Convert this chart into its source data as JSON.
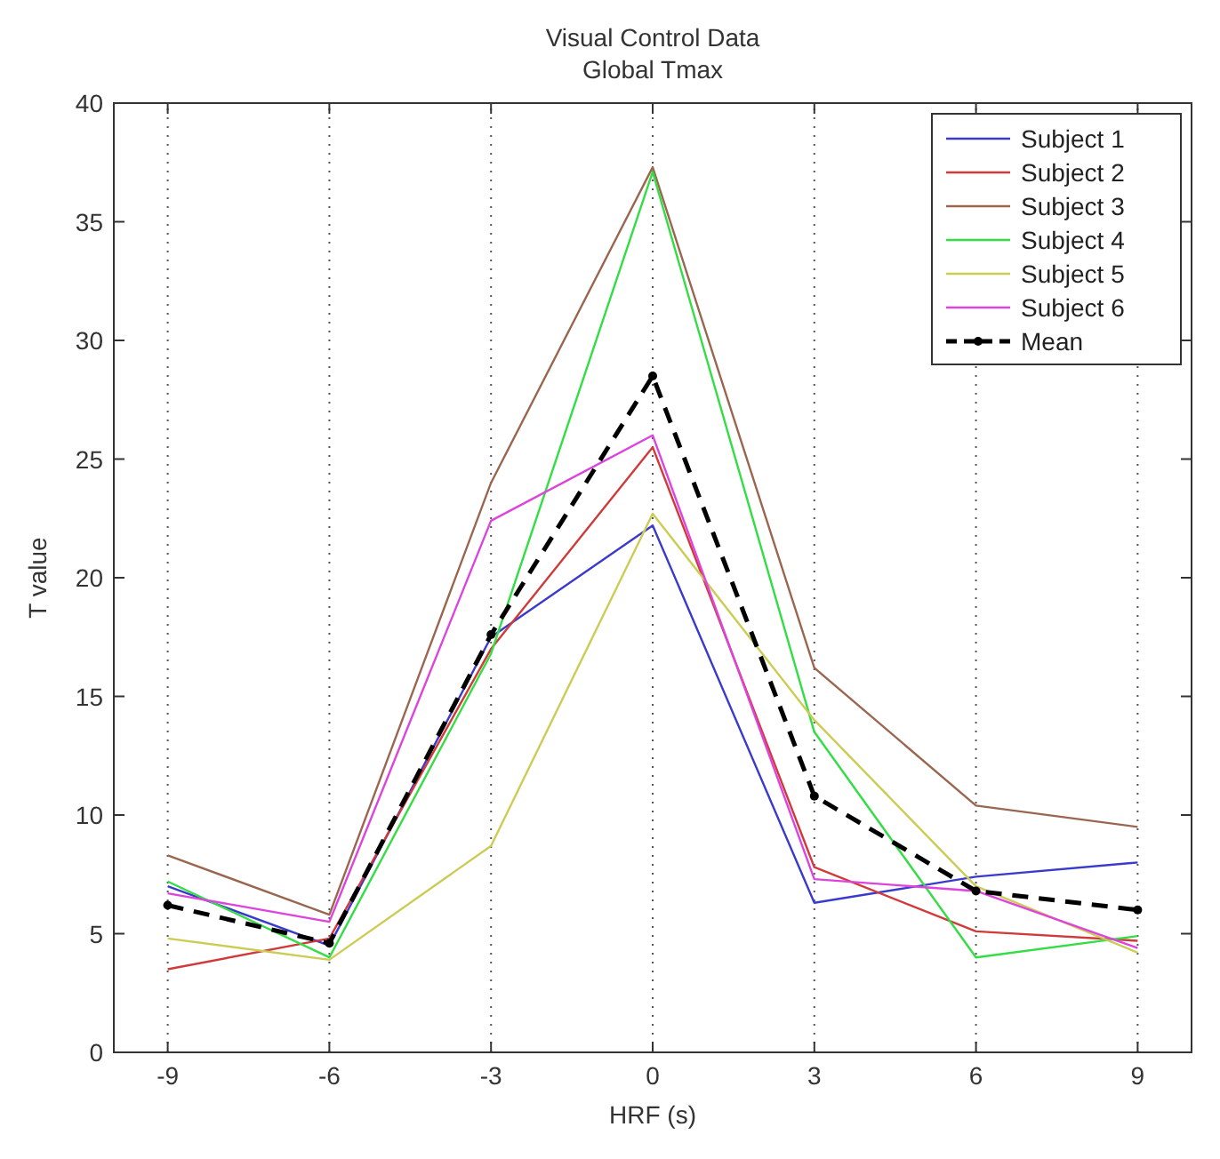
{
  "chart_data": {
    "type": "line",
    "title": "Visual Control Data",
    "subtitle": "Global Tmax",
    "xlabel": "HRF (s)",
    "ylabel": "T value",
    "x": [
      -9,
      -6,
      -3,
      0,
      3,
      6,
      9
    ],
    "xlim": [
      -10,
      10
    ],
    "xticks": [
      -9,
      -6,
      -3,
      0,
      3,
      6,
      9
    ],
    "ylim": [
      0,
      40
    ],
    "yticks": [
      0,
      5,
      10,
      15,
      20,
      25,
      30,
      35,
      40
    ],
    "grid": "x",
    "legend": "top right",
    "series": [
      {
        "name": "Subject 1",
        "color": "#3a3acc",
        "values": [
          7.0,
          4.5,
          17.5,
          22.2,
          6.3,
          7.4,
          8.0
        ]
      },
      {
        "name": "Subject 2",
        "color": "#d03a3a",
        "values": [
          3.5,
          4.8,
          17.0,
          25.5,
          7.8,
          5.1,
          4.7
        ]
      },
      {
        "name": "Subject 3",
        "color": "#9a6650",
        "values": [
          8.3,
          5.8,
          24.0,
          37.3,
          16.2,
          10.4,
          9.5
        ]
      },
      {
        "name": "Subject 4",
        "color": "#33dd44",
        "values": [
          7.2,
          4.0,
          16.8,
          37.1,
          13.5,
          4.0,
          4.9
        ]
      },
      {
        "name": "Subject 5",
        "color": "#cccc55",
        "values": [
          4.8,
          3.9,
          8.7,
          22.7,
          14.0,
          7.0,
          4.2
        ]
      },
      {
        "name": "Subject 6",
        "color": "#dd44dd",
        "values": [
          6.7,
          5.5,
          22.4,
          26.0,
          7.3,
          6.8,
          4.4
        ]
      },
      {
        "name": "Mean",
        "color": "#000000",
        "values": [
          6.2,
          4.6,
          17.6,
          28.5,
          10.8,
          6.8,
          6.0
        ],
        "marker": "circle",
        "line_style": "dashed"
      }
    ]
  }
}
